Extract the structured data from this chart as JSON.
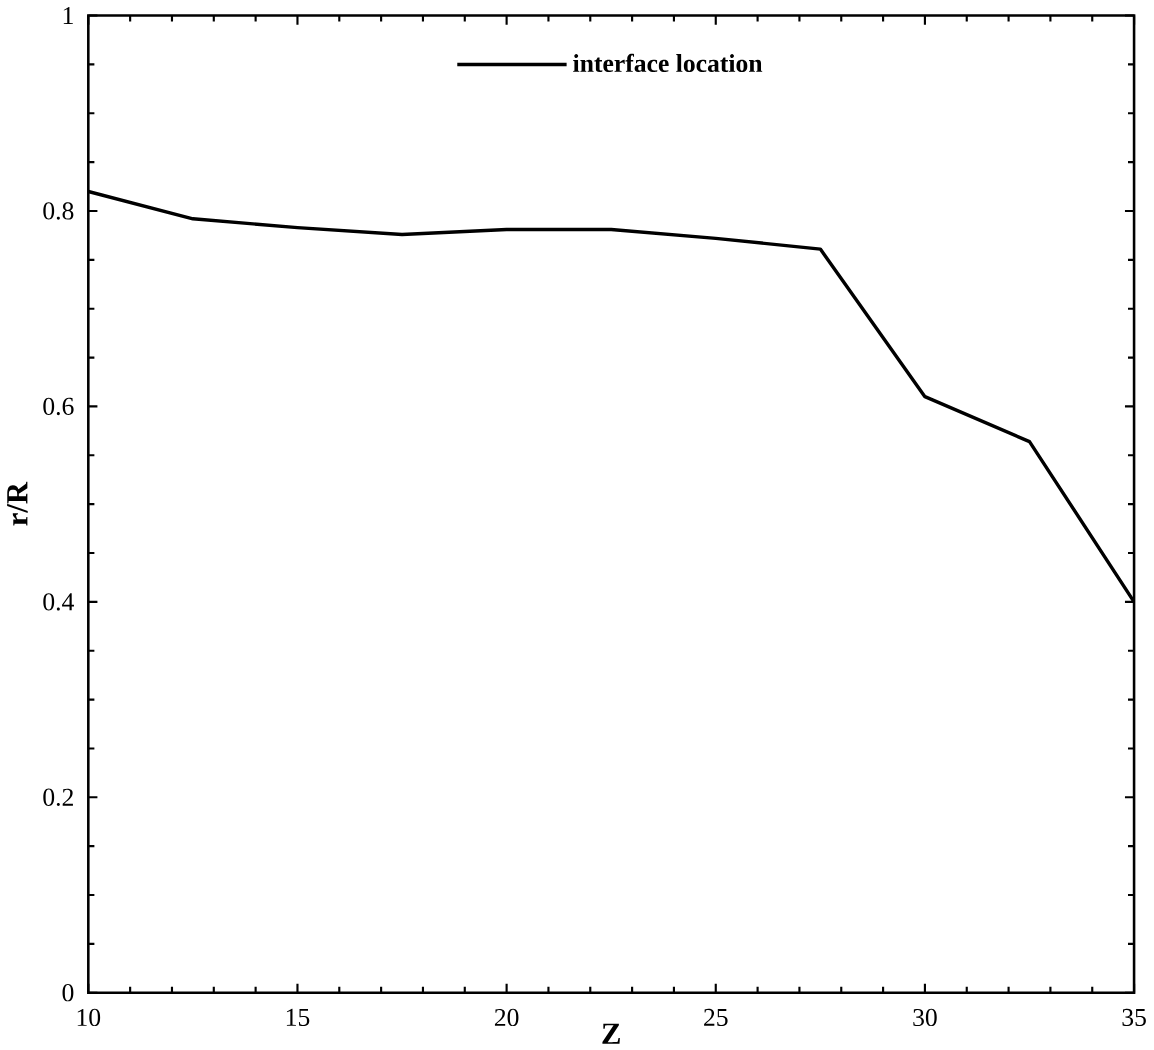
{
  "chart_data": {
    "type": "line",
    "xlabel": "Z",
    "ylabel": "r/R",
    "x": [
      10,
      12.5,
      15,
      17.5,
      20,
      22.5,
      25,
      27.5,
      30,
      32.5,
      35
    ],
    "series": [
      {
        "name": "interface location",
        "color": "#000000",
        "values": [
          0.82,
          0.792,
          0.783,
          0.776,
          0.781,
          0.781,
          0.772,
          0.761,
          0.61,
          0.564,
          0.4
        ]
      }
    ],
    "xlim": [
      10,
      35
    ],
    "ylim": [
      0,
      1
    ],
    "xticks": [
      10,
      15,
      20,
      25,
      30,
      35
    ],
    "yticks": [
      0,
      0.2,
      0.4,
      0.6,
      0.8,
      1
    ],
    "legend": "top",
    "line_style": "solid",
    "marker": "none",
    "grid": false
  }
}
